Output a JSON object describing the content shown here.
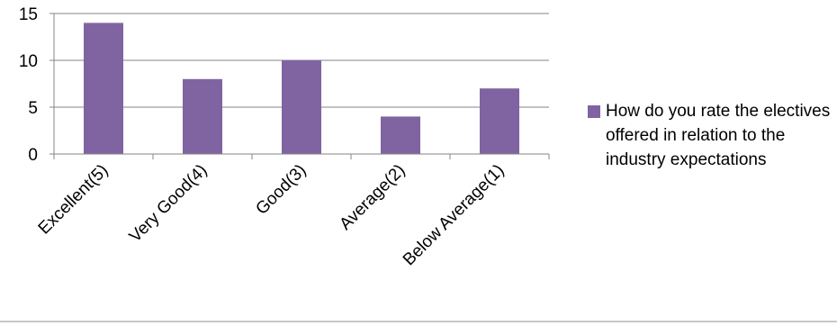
{
  "chart_data": {
    "type": "bar",
    "categories": [
      "Excellent(5)",
      "Very Good(4)",
      "Good(3)",
      "Average(2)",
      "Below Average(1)"
    ],
    "series": [
      {
        "name": "How do you rate the electives offered in relation to the industry expectations",
        "values": [
          14,
          8,
          10,
          4,
          7
        ]
      }
    ],
    "ylim": [
      0,
      15
    ],
    "yticks": [
      0,
      5,
      10,
      15
    ],
    "grid": true,
    "legend_position": "right",
    "colors": {
      "bar": "#8064a2",
      "grid": "#868686",
      "axis": "#868686"
    }
  }
}
